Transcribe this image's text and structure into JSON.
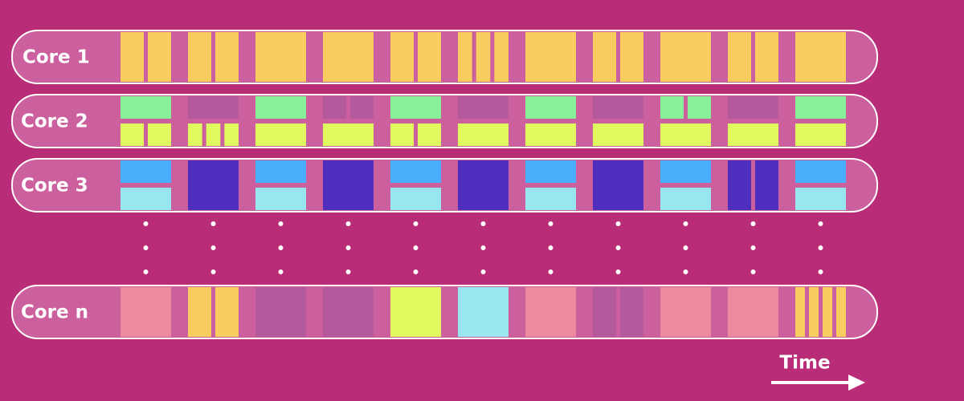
{
  "rows": [
    {
      "label": "Core 1"
    },
    {
      "label": "Core 2"
    },
    {
      "label": "Core 3"
    },
    {
      "label": "Core n"
    }
  ],
  "time_label": "Time"
}
